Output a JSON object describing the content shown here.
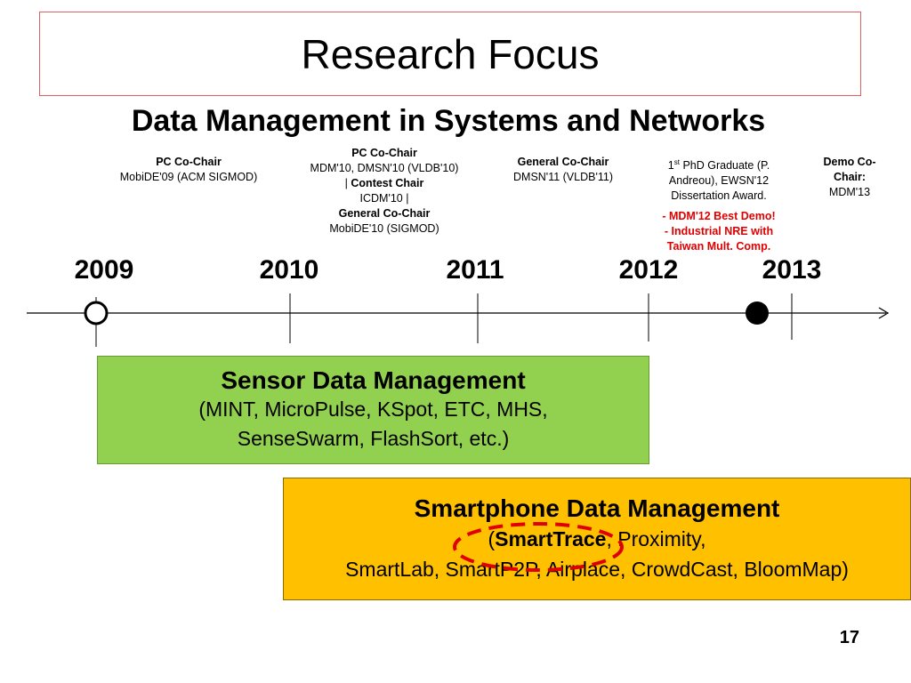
{
  "title": "Research Focus",
  "subtitle": "Data Management in Systems and Networks",
  "events": {
    "e2009": {
      "role": "PC Co-Chair",
      "venue": "MobiDE'09 (ACM SIGMOD)"
    },
    "e2010": {
      "role1": "PC Co-Chair",
      "venue1": "MDM'10, DMSN'10 (VLDB'10)",
      "sep1": "|",
      "role2": "Contest Chair",
      "venue2": "ICDM'10 |",
      "role3": "General Co-Chair",
      "venue3": "MobiDE'10 (SIGMOD)"
    },
    "e2011": {
      "role": "General Co-Chair",
      "venue": "DMSN'11 (VLDB'11)"
    },
    "e2012": {
      "ord_num": "1",
      "ord_sup": "st",
      "line1": "PhD Graduate (P.",
      "line2": "Andreou), EWSN'12",
      "line3": "Dissertation Award.",
      "award1": "- MDM'12 Best Demo!",
      "award2": "- Industrial NRE with",
      "award3": "Taiwan Mult. Comp."
    },
    "e2013": {
      "role_line1": "Demo Co-",
      "role_line2": "Chair:",
      "venue": "MDM'13"
    }
  },
  "years": [
    "2009",
    "2010",
    "2011",
    "2012",
    "2013"
  ],
  "sensor_box": {
    "heading": "Sensor Data Management",
    "line1": "(MINT, MicroPulse, KSpot, ETC, MHS,",
    "line2": "SenseSwarm, FlashSort, etc.)"
  },
  "smartphone_box": {
    "heading": "Smartphone Data Management",
    "open_paren": "(",
    "highlight": "SmartTrace",
    "rest1": ", Proximity,",
    "line2": "SmartLab, SmartP2P, Airplace, CrowdCast, BloomMap)"
  },
  "page_number": "17",
  "colors": {
    "title_border": "#e06060",
    "sensor_fill": "#92d050",
    "smartphone_fill": "#ffc000",
    "highlight_ellipse": "#e00000",
    "award_text": "#e00000"
  }
}
